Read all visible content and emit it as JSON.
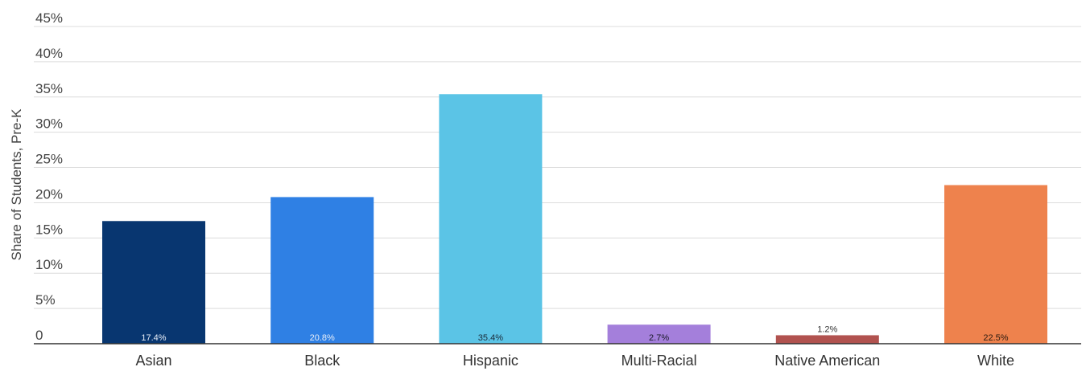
{
  "chart_data": {
    "type": "bar",
    "title": "",
    "xlabel": "",
    "ylabel": "Share of Students, Pre-K",
    "ylim": [
      0,
      45
    ],
    "yticks": [
      0,
      5,
      10,
      15,
      20,
      25,
      30,
      35,
      40,
      45
    ],
    "ytick_labels": [
      "0",
      "5%",
      "10%",
      "15%",
      "20%",
      "25%",
      "30%",
      "35%",
      "40%",
      "45%"
    ],
    "grid": true,
    "legend": "none",
    "categories": [
      "Asian",
      "Black",
      "Hispanic",
      "Multi-Racial",
      "Native American",
      "White"
    ],
    "values": [
      17.4,
      20.8,
      35.4,
      2.7,
      1.2,
      22.5
    ],
    "data_labels": [
      "17.4%",
      "20.8%",
      "35.4%",
      "2.7%",
      "1.2%",
      "22.5%"
    ],
    "colors": [
      "#083670",
      "#2f80e4",
      "#5bc4e6",
      "#a47fdb",
      "#b1524f",
      "#ee824d"
    ],
    "data_label_colors": [
      "#e8eef8",
      "#e8eef8",
      "#1a2b3a",
      "#1a1a2a",
      "#333333",
      "#2a1a10"
    ]
  }
}
